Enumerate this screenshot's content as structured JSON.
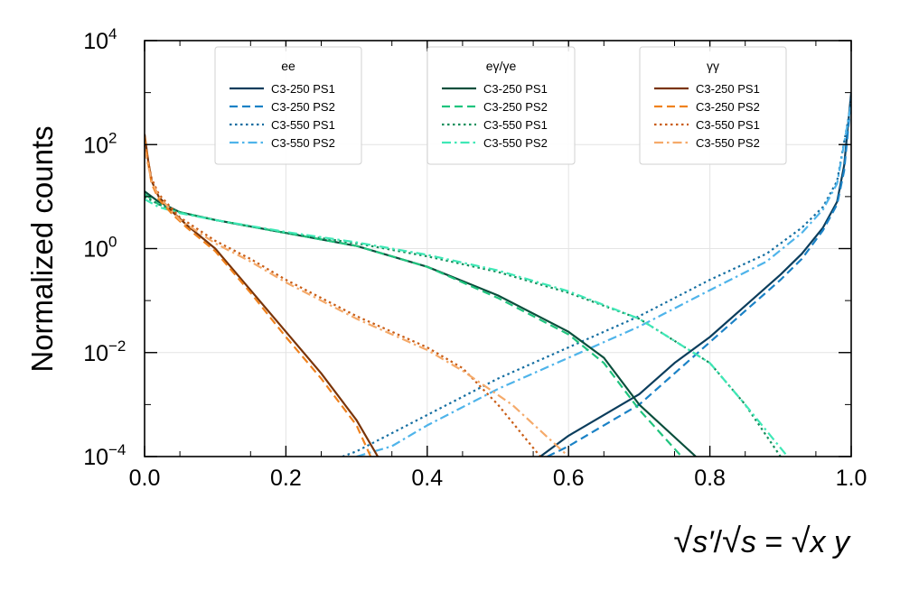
{
  "chart_data": {
    "type": "line",
    "ylabel": "Normalized counts",
    "xlabel_parts": [
      "√",
      "s′",
      "/",
      "√",
      "s",
      " = ",
      "√",
      "x y"
    ],
    "xlim": [
      0.0,
      1.0
    ],
    "ylim_log10": [
      -4,
      4
    ],
    "x_ticks": [
      "0.0",
      "0.2",
      "0.4",
      "0.6",
      "0.8",
      "1.0"
    ],
    "y_ticks": [
      {
        "base": "10",
        "exp": "4"
      },
      {
        "base": "10",
        "exp": "2"
      },
      {
        "base": "10",
        "exp": "0"
      },
      {
        "base": "10",
        "exp": "−2"
      },
      {
        "base": "10",
        "exp": "−4"
      }
    ],
    "grid": true,
    "legends": [
      {
        "title": "ee",
        "entries": [
          "C3-250 PS1",
          "C3-250 PS2",
          "C3-550 PS1",
          "C3-550 PS2"
        ]
      },
      {
        "title": "eγ/γe",
        "entries": [
          "C3-250 PS1",
          "C3-250 PS2",
          "C3-550 PS1",
          "C3-550 PS2"
        ]
      },
      {
        "title": "γγ",
        "entries": [
          "C3-250 PS1",
          "C3-250 PS2",
          "C3-550 PS1",
          "C3-550 PS2"
        ]
      }
    ],
    "series": [
      {
        "name": "ee C3-250 PS1",
        "group": "ee",
        "color": "#0b3d5c",
        "style": "solid",
        "x": [
          0.56,
          0.6,
          0.65,
          0.7,
          0.75,
          0.8,
          0.85,
          0.9,
          0.93,
          0.96,
          0.98,
          0.99,
          1.0
        ],
        "y_log10": [
          -4,
          -3.6,
          -3.2,
          -2.8,
          -2.2,
          -1.7,
          -1.1,
          -0.5,
          -0.1,
          0.4,
          0.9,
          1.6,
          3.0
        ]
      },
      {
        "name": "ee C3-250 PS2",
        "group": "ee",
        "color": "#1b82c6",
        "style": "dashed",
        "x": [
          0.57,
          0.6,
          0.65,
          0.7,
          0.75,
          0.8,
          0.85,
          0.9,
          0.93,
          0.96,
          0.98,
          0.99,
          1.0
        ],
        "y_log10": [
          -4,
          -3.8,
          -3.4,
          -3.0,
          -2.4,
          -1.8,
          -1.2,
          -0.6,
          -0.2,
          0.35,
          0.85,
          1.5,
          2.9
        ]
      },
      {
        "name": "ee C3-550 PS1",
        "group": "ee",
        "color": "#146ea1",
        "style": "dotted",
        "x": [
          0.28,
          0.3,
          0.4,
          0.5,
          0.6,
          0.7,
          0.8,
          0.88,
          0.93,
          0.96,
          0.98,
          1.0
        ],
        "y_log10": [
          -4,
          -3.9,
          -3.2,
          -2.5,
          -1.9,
          -1.3,
          -0.6,
          -0.1,
          0.4,
          0.8,
          1.3,
          2.8
        ]
      },
      {
        "name": "ee C3-550 PS2",
        "group": "ee",
        "color": "#4fb4ea",
        "style": "dashdot",
        "x": [
          0.3,
          0.35,
          0.4,
          0.5,
          0.6,
          0.7,
          0.8,
          0.88,
          0.93,
          0.96,
          0.98,
          1.0
        ],
        "y_log10": [
          -4,
          -3.8,
          -3.4,
          -2.7,
          -2.1,
          -1.5,
          -0.8,
          -0.25,
          0.3,
          0.75,
          1.25,
          2.8
        ]
      },
      {
        "name": "eγ C3-250 PS1",
        "group": "eg",
        "color": "#0a4f3c",
        "style": "solid",
        "x": [
          0.0,
          0.02,
          0.05,
          0.1,
          0.2,
          0.3,
          0.4,
          0.5,
          0.6,
          0.65,
          0.7,
          0.78
        ],
        "y_log10": [
          1.1,
          0.9,
          0.7,
          0.55,
          0.3,
          0.05,
          -0.35,
          -0.9,
          -1.6,
          -2.1,
          -3.0,
          -4
        ]
      },
      {
        "name": "eγ C3-250 PS2",
        "group": "eg",
        "color": "#1fc47e",
        "style": "dashed",
        "x": [
          0.0,
          0.02,
          0.05,
          0.1,
          0.2,
          0.3,
          0.4,
          0.5,
          0.6,
          0.65,
          0.7,
          0.76
        ],
        "y_log10": [
          1.05,
          0.85,
          0.7,
          0.55,
          0.3,
          0.05,
          -0.35,
          -0.95,
          -1.65,
          -2.2,
          -3.1,
          -4
        ]
      },
      {
        "name": "eγ C3-550 PS1",
        "group": "eg",
        "color": "#138f5c",
        "style": "dotted",
        "x": [
          0.0,
          0.02,
          0.05,
          0.1,
          0.2,
          0.3,
          0.4,
          0.5,
          0.6,
          0.7,
          0.8,
          0.85,
          0.9
        ],
        "y_log10": [
          1.0,
          0.85,
          0.7,
          0.55,
          0.3,
          0.1,
          -0.15,
          -0.45,
          -0.85,
          -1.35,
          -2.2,
          -3.0,
          -4
        ]
      },
      {
        "name": "eγ C3-550 PS2",
        "group": "eg",
        "color": "#3fe8b6",
        "style": "dashdot",
        "x": [
          0.0,
          0.02,
          0.05,
          0.1,
          0.2,
          0.3,
          0.4,
          0.5,
          0.6,
          0.7,
          0.8,
          0.85,
          0.91
        ],
        "y_log10": [
          0.95,
          0.8,
          0.68,
          0.55,
          0.32,
          0.12,
          -0.12,
          -0.42,
          -0.82,
          -1.35,
          -2.2,
          -3.0,
          -4
        ]
      },
      {
        "name": "γγ C3-250 PS1",
        "group": "gg",
        "color": "#7a3408",
        "style": "solid",
        "x": [
          0.0,
          0.005,
          0.01,
          0.02,
          0.04,
          0.06,
          0.1,
          0.15,
          0.2,
          0.25,
          0.3,
          0.33
        ],
        "y_log10": [
          2.2,
          1.7,
          1.3,
          1.0,
          0.7,
          0.45,
          0.0,
          -0.8,
          -1.6,
          -2.4,
          -3.3,
          -4
        ]
      },
      {
        "name": "γγ C3-250 PS2",
        "group": "gg",
        "color": "#f0821e",
        "style": "dashed",
        "x": [
          0.0,
          0.005,
          0.01,
          0.02,
          0.04,
          0.06,
          0.1,
          0.15,
          0.2,
          0.25,
          0.3,
          0.32
        ],
        "y_log10": [
          2.15,
          1.65,
          1.25,
          0.95,
          0.65,
          0.4,
          -0.05,
          -0.85,
          -1.7,
          -2.5,
          -3.4,
          -4
        ]
      },
      {
        "name": "γγ C3-550 PS1",
        "group": "gg",
        "color": "#c95c14",
        "style": "dotted",
        "x": [
          0.0,
          0.01,
          0.02,
          0.05,
          0.1,
          0.15,
          0.2,
          0.3,
          0.4,
          0.45,
          0.5,
          0.56
        ],
        "y_log10": [
          2.0,
          1.35,
          1.05,
          0.6,
          0.15,
          -0.2,
          -0.6,
          -1.3,
          -1.9,
          -2.3,
          -3.0,
          -4
        ]
      },
      {
        "name": "γγ C3-550 PS2",
        "group": "gg",
        "color": "#f5aa6a",
        "style": "dashdot",
        "x": [
          0.0,
          0.01,
          0.02,
          0.05,
          0.1,
          0.15,
          0.2,
          0.3,
          0.4,
          0.45,
          0.52,
          0.6
        ],
        "y_log10": [
          1.9,
          1.3,
          1.0,
          0.55,
          0.1,
          -0.25,
          -0.65,
          -1.35,
          -1.95,
          -2.35,
          -3.0,
          -4
        ]
      }
    ]
  }
}
